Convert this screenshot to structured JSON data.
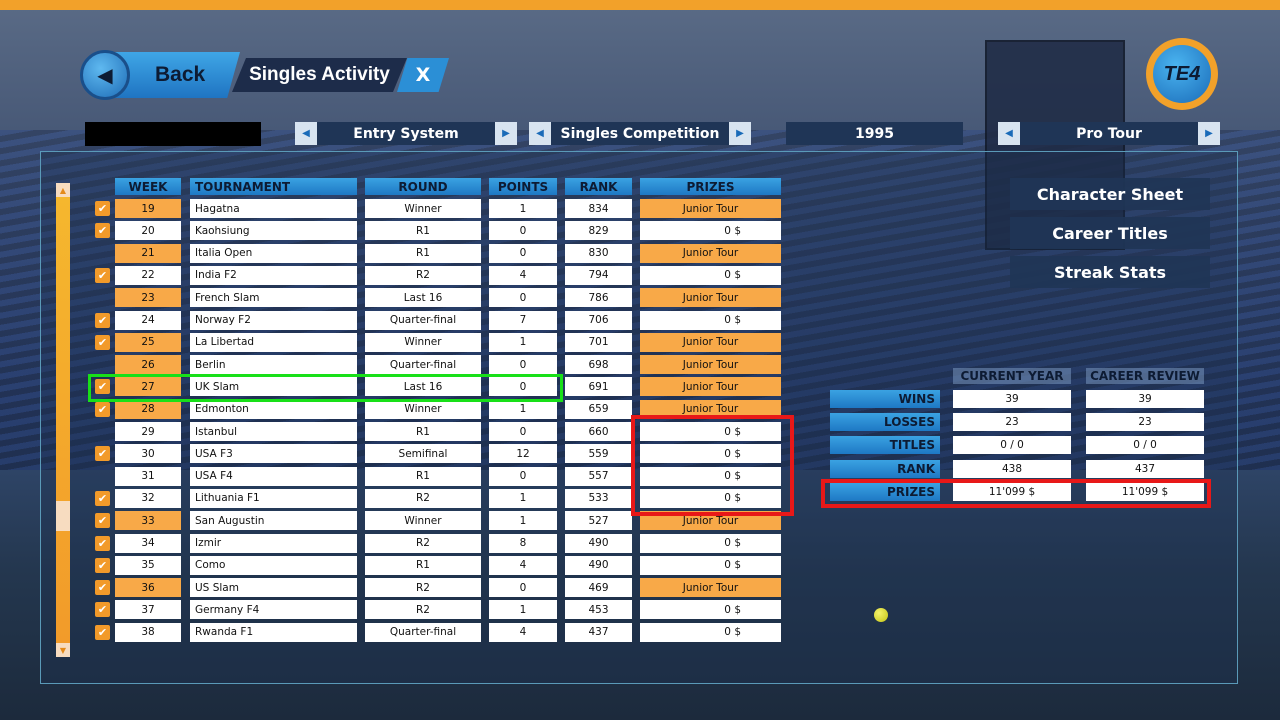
{
  "header": {
    "back_label": "Back",
    "title": "Singles Activity",
    "close_label": "X",
    "logo_text": "TE4"
  },
  "selectors": {
    "entry_system": "Entry System",
    "competition": "Singles Competition",
    "year": "1995",
    "tour": "Pro Tour"
  },
  "table": {
    "columns": [
      "WEEK",
      "TOURNAMENT",
      "ROUND",
      "POINTS",
      "RANK",
      "PRIZES"
    ],
    "rows": [
      {
        "checked": true,
        "week": "19",
        "tournament": "Hagatna",
        "round": "Winner",
        "points": "1",
        "rank": "834",
        "prize": "Junior Tour",
        "prize_orange": true,
        "week_orange": true
      },
      {
        "checked": true,
        "week": "20",
        "tournament": "Kaohsiung",
        "round": "R1",
        "points": "0",
        "rank": "829",
        "prize": "0 $",
        "prize_orange": false,
        "week_orange": false
      },
      {
        "checked": false,
        "week": "21",
        "tournament": "Italia Open",
        "round": "R1",
        "points": "0",
        "rank": "830",
        "prize": "Junior Tour",
        "prize_orange": true,
        "week_orange": true
      },
      {
        "checked": true,
        "week": "22",
        "tournament": "India F2",
        "round": "R2",
        "points": "4",
        "rank": "794",
        "prize": "0 $",
        "prize_orange": false,
        "week_orange": false
      },
      {
        "checked": false,
        "week": "23",
        "tournament": "French Slam",
        "round": "Last 16",
        "points": "0",
        "rank": "786",
        "prize": "Junior Tour",
        "prize_orange": true,
        "week_orange": true
      },
      {
        "checked": true,
        "week": "24",
        "tournament": "Norway F2",
        "round": "Quarter-final",
        "points": "7",
        "rank": "706",
        "prize": "0 $",
        "prize_orange": false,
        "week_orange": false
      },
      {
        "checked": true,
        "week": "25",
        "tournament": "La Libertad",
        "round": "Winner",
        "points": "1",
        "rank": "701",
        "prize": "Junior Tour",
        "prize_orange": true,
        "week_orange": true
      },
      {
        "checked": false,
        "week": "26",
        "tournament": "Berlin",
        "round": "Quarter-final",
        "points": "0",
        "rank": "698",
        "prize": "Junior Tour",
        "prize_orange": true,
        "week_orange": true
      },
      {
        "checked": true,
        "week": "27",
        "tournament": "UK Slam",
        "round": "Last 16",
        "points": "0",
        "rank": "691",
        "prize": "Junior Tour",
        "prize_orange": true,
        "week_orange": true
      },
      {
        "checked": true,
        "week": "28",
        "tournament": "Edmonton",
        "round": "Winner",
        "points": "1",
        "rank": "659",
        "prize": "Junior Tour",
        "prize_orange": true,
        "week_orange": true
      },
      {
        "checked": false,
        "week": "29",
        "tournament": "Istanbul",
        "round": "R1",
        "points": "0",
        "rank": "660",
        "prize": "0 $",
        "prize_orange": false,
        "week_orange": false
      },
      {
        "checked": true,
        "week": "30",
        "tournament": "USA F3",
        "round": "Semifinal",
        "points": "12",
        "rank": "559",
        "prize": "0 $",
        "prize_orange": false,
        "week_orange": false
      },
      {
        "checked": false,
        "week": "31",
        "tournament": "USA F4",
        "round": "R1",
        "points": "0",
        "rank": "557",
        "prize": "0 $",
        "prize_orange": false,
        "week_orange": false
      },
      {
        "checked": true,
        "week": "32",
        "tournament": "Lithuania F1",
        "round": "R2",
        "points": "1",
        "rank": "533",
        "prize": "0 $",
        "prize_orange": false,
        "week_orange": false
      },
      {
        "checked": true,
        "week": "33",
        "tournament": "San Augustin",
        "round": "Winner",
        "points": "1",
        "rank": "527",
        "prize": "Junior Tour",
        "prize_orange": true,
        "week_orange": true
      },
      {
        "checked": true,
        "week": "34",
        "tournament": "Izmir",
        "round": "R2",
        "points": "8",
        "rank": "490",
        "prize": "0 $",
        "prize_orange": false,
        "week_orange": false
      },
      {
        "checked": true,
        "week": "35",
        "tournament": "Como",
        "round": "R1",
        "points": "4",
        "rank": "490",
        "prize": "0 $",
        "prize_orange": false,
        "week_orange": false
      },
      {
        "checked": true,
        "week": "36",
        "tournament": "US Slam",
        "round": "R2",
        "points": "0",
        "rank": "469",
        "prize": "Junior Tour",
        "prize_orange": true,
        "week_orange": true
      },
      {
        "checked": true,
        "week": "37",
        "tournament": "Germany F4",
        "round": "R2",
        "points": "1",
        "rank": "453",
        "prize": "0 $",
        "prize_orange": false,
        "week_orange": false
      },
      {
        "checked": true,
        "week": "38",
        "tournament": "Rwanda F1",
        "round": "Quarter-final",
        "points": "4",
        "rank": "437",
        "prize": "0 $",
        "prize_orange": false,
        "week_orange": false
      }
    ]
  },
  "side_buttons": {
    "character_sheet": "Character Sheet",
    "career_titles": "Career Titles",
    "streak_stats": "Streak Stats"
  },
  "stats": {
    "col_current": "CURRENT YEAR",
    "col_career": "CAREER REVIEW",
    "rows": [
      {
        "label": "WINS",
        "current": "39",
        "career": "39"
      },
      {
        "label": "LOSSES",
        "current": "23",
        "career": "23"
      },
      {
        "label": "TITLES",
        "current": "0 / 0",
        "career": "0 / 0"
      },
      {
        "label": "RANK",
        "current": "438",
        "career": "437"
      },
      {
        "label": "PRIZES",
        "current": "11'099 $",
        "career": "11'099 $"
      }
    ]
  },
  "colors": {
    "accent_orange": "#f29a2a",
    "accent_blue": "#2b8fd6",
    "highlight_green": "#18e018",
    "highlight_red": "#e81818"
  }
}
